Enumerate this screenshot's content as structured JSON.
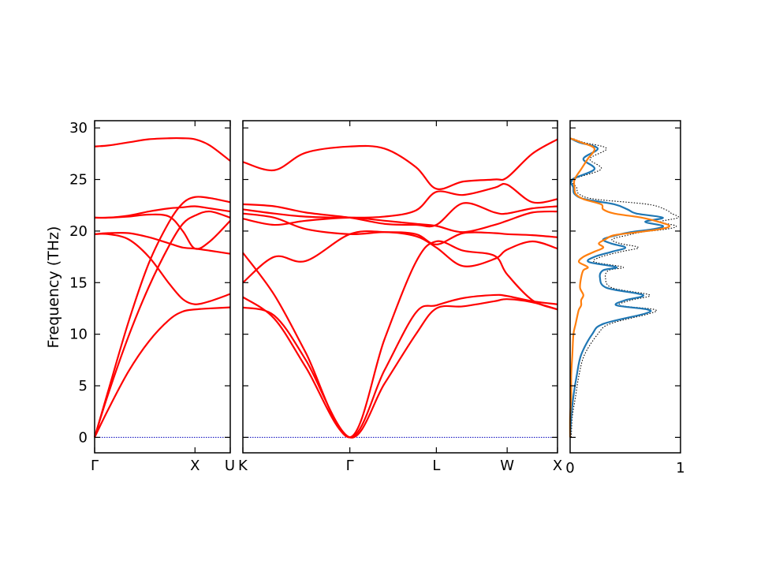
{
  "colors": {
    "band": "#ff0000",
    "zero_line": "#0000bb",
    "dos_total": "#000000",
    "dos_1": "#1f77b4",
    "dos_2": "#ff7f0e"
  },
  "chart_data": {
    "type": "line",
    "title": "",
    "ylabel": "Frequency (THz)",
    "ylim": [
      -1.5,
      30.7
    ],
    "yticks": [
      0,
      5,
      10,
      15,
      20,
      25,
      30
    ],
    "grid": false,
    "dos_xlim": [
      0,
      1
    ],
    "dos_xticks": [
      "0",
      "1"
    ],
    "segments": [
      {
        "xticks": [
          {
            "pos": 0,
            "label": "Γ"
          },
          {
            "pos": 0.74,
            "label": "X"
          },
          {
            "pos": 1,
            "label": "U"
          }
        ],
        "bands": [
          {
            "x": [
              0,
              0.1,
              0.25,
              0.4,
              0.55,
              0.65,
              0.74,
              0.85,
              1.0
            ],
            "y": [
              0,
              2.7,
              6.4,
              9.3,
              11.4,
              12.2,
              12.4,
              12.5,
              12.6
            ]
          },
          {
            "x": [
              0,
              0.1,
              0.25,
              0.4,
              0.55,
              0.65,
              0.74,
              0.85,
              1.0
            ],
            "y": [
              0,
              4.2,
              9.8,
              14.6,
              18.6,
              20.7,
              21.5,
              21.9,
              21.3
            ]
          },
          {
            "x": [
              0,
              0.1,
              0.25,
              0.4,
              0.55,
              0.65,
              0.74,
              0.85,
              1.0
            ],
            "y": [
              0,
              4.5,
              11.2,
              16.9,
              20.9,
              22.7,
              23.3,
              23.2,
              22.8
            ]
          },
          {
            "x": [
              0,
              0.1,
              0.25,
              0.4,
              0.55,
              0.65,
              0.74,
              0.85,
              1.0
            ],
            "y": [
              19.7,
              19.7,
              19.2,
              17.5,
              14.9,
              13.4,
              12.9,
              13.2,
              13.9
            ]
          },
          {
            "x": [
              0,
              0.1,
              0.25,
              0.4,
              0.55,
              0.65,
              0.74,
              0.85,
              1.0
            ],
            "y": [
              19.7,
              19.8,
              19.8,
              19.4,
              18.8,
              18.4,
              18.3,
              18.1,
              17.8
            ]
          },
          {
            "x": [
              0,
              0.1,
              0.25,
              0.4,
              0.55,
              0.65,
              0.74,
              0.85,
              1.0
            ],
            "y": [
              21.3,
              21.3,
              21.5,
              21.9,
              22.2,
              22.3,
              22.4,
              22.2,
              21.9
            ]
          },
          {
            "x": [
              0,
              0.1,
              0.25,
              0.4,
              0.55,
              0.65,
              0.74,
              0.85,
              1.0
            ],
            "y": [
              21.3,
              21.3,
              21.4,
              21.6,
              21.4,
              20.0,
              18.3,
              19.0,
              21.0
            ]
          },
          {
            "x": [
              0,
              0.1,
              0.25,
              0.4,
              0.55,
              0.65,
              0.74,
              0.85,
              1.0
            ],
            "y": [
              28.2,
              28.3,
              28.6,
              28.9,
              29.0,
              29.0,
              28.9,
              28.3,
              26.8
            ]
          }
        ]
      },
      {
        "xticks": [
          {
            "pos": 0,
            "label": "K"
          },
          {
            "pos": 0.34,
            "label": "Γ"
          },
          {
            "pos": 0.615,
            "label": "L"
          },
          {
            "pos": 0.84,
            "label": "W"
          },
          {
            "pos": 1,
            "label": "X"
          }
        ],
        "bands": [
          {
            "x": [
              0,
              0.1,
              0.2,
              0.34,
              0.45,
              0.55,
              0.615,
              0.7,
              0.8,
              0.84,
              0.92,
              1.0
            ],
            "y": [
              12.6,
              11.8,
              7.5,
              0,
              5.2,
              10.0,
              12.5,
              12.7,
              13.2,
              13.4,
              13.1,
              12.4
            ]
          },
          {
            "x": [
              0,
              0.1,
              0.2,
              0.34,
              0.45,
              0.55,
              0.615,
              0.7,
              0.8,
              0.84,
              0.92,
              1.0
            ],
            "y": [
              13.6,
              11.5,
              6.8,
              0,
              6.5,
              12.1,
              12.8,
              13.5,
              13.8,
              13.7,
              13.2,
              12.9
            ]
          },
          {
            "x": [
              0,
              0.1,
              0.2,
              0.34,
              0.45,
              0.55,
              0.615,
              0.7,
              0.8,
              0.84,
              0.92,
              1.0
            ],
            "y": [
              17.9,
              13.8,
              8.2,
              0,
              9.5,
              17.0,
              19.0,
              18.1,
              17.6,
              15.8,
              13.3,
              12.4
            ]
          },
          {
            "x": [
              0,
              0.1,
              0.2,
              0.34,
              0.45,
              0.55,
              0.615,
              0.7,
              0.8,
              0.84,
              0.92,
              1.0
            ],
            "y": [
              15.0,
              17.5,
              17.1,
              19.7,
              19.9,
              19.5,
              18.4,
              16.6,
              17.3,
              18.2,
              19.0,
              18.3
            ]
          },
          {
            "x": [
              0,
              0.1,
              0.2,
              0.34,
              0.45,
              0.55,
              0.615,
              0.7,
              0.8,
              0.84,
              0.92,
              1.0
            ],
            "y": [
              21.7,
              21.3,
              20.2,
              19.7,
              19.9,
              19.7,
              18.7,
              19.8,
              19.8,
              19.7,
              19.6,
              19.4
            ]
          },
          {
            "x": [
              0,
              0.1,
              0.2,
              0.34,
              0.45,
              0.55,
              0.615,
              0.7,
              0.8,
              0.84,
              0.92,
              1.0
            ],
            "y": [
              21.2,
              20.6,
              21.0,
              21.3,
              21.0,
              20.7,
              20.5,
              19.9,
              20.6,
              21.0,
              21.8,
              21.9
            ]
          },
          {
            "x": [
              0,
              0.1,
              0.2,
              0.34,
              0.45,
              0.55,
              0.615,
              0.7,
              0.8,
              0.84,
              0.92,
              1.0
            ],
            "y": [
              22.6,
              22.4,
              21.8,
              21.3,
              20.7,
              20.6,
              20.6,
              22.7,
              21.8,
              21.7,
              22.2,
              22.4
            ]
          },
          {
            "x": [
              0,
              0.1,
              0.2,
              0.34,
              0.45,
              0.55,
              0.615,
              0.7,
              0.8,
              0.84,
              0.92,
              1.0
            ],
            "y": [
              22.1,
              21.7,
              21.4,
              21.3,
              21.4,
              22.0,
              23.8,
              23.5,
              24.2,
              24.5,
              22.8,
              23.1
            ]
          },
          {
            "x": [
              0,
              0.1,
              0.2,
              0.34,
              0.45,
              0.55,
              0.615,
              0.7,
              0.8,
              0.84,
              0.92,
              1.0
            ],
            "y": [
              26.7,
              25.9,
              27.6,
              28.2,
              28.0,
              26.2,
              24.1,
              24.8,
              25.0,
              25.2,
              27.5,
              28.9
            ]
          }
        ]
      }
    ],
    "dos_series": [
      {
        "style": "dotted",
        "y": [
          0,
          2,
          4,
          6,
          8,
          10,
          11,
          12,
          12.4,
          12.8,
          13.3,
          13.8,
          14.5,
          15.5,
          16.2,
          16.5,
          17.0,
          17.5,
          18.0,
          18.4,
          18.8,
          19.2,
          19.6,
          19.9,
          20.2,
          20.5,
          20.9,
          21.3,
          21.7,
          22.1,
          22.6,
          23.1,
          23.6,
          24.2,
          25.0,
          26.0,
          27.0,
          28.0,
          28.6,
          29.0
        ],
        "v": [
          0.01,
          0.02,
          0.05,
          0.08,
          0.13,
          0.25,
          0.36,
          0.72,
          0.76,
          0.45,
          0.55,
          0.72,
          0.38,
          0.32,
          0.35,
          0.48,
          0.22,
          0.28,
          0.46,
          0.62,
          0.45,
          0.38,
          0.52,
          0.65,
          0.88,
          0.96,
          0.82,
          0.98,
          0.92,
          0.86,
          0.7,
          0.22,
          0.08,
          0.06,
          0.03,
          0.28,
          0.18,
          0.33,
          0.12,
          0.02
        ]
      },
      {
        "style": "solid",
        "color": "dos_1",
        "y": [
          0,
          2,
          4,
          6,
          8,
          10,
          11,
          12,
          12.4,
          12.8,
          13.3,
          13.8,
          14.5,
          15.5,
          16.2,
          16.5,
          17.0,
          17.5,
          18.0,
          18.4,
          18.8,
          19.2,
          19.6,
          19.9,
          20.2,
          20.5,
          20.9,
          21.3,
          21.7,
          22.1,
          22.6,
          23.1,
          23.6,
          24.2,
          25.0,
          26.0,
          27.0,
          28.0,
          28.6,
          29.0
        ],
        "v": [
          0.0,
          0.01,
          0.03,
          0.06,
          0.1,
          0.2,
          0.3,
          0.68,
          0.7,
          0.42,
          0.5,
          0.66,
          0.33,
          0.27,
          0.3,
          0.42,
          0.17,
          0.22,
          0.38,
          0.5,
          0.37,
          0.3,
          0.42,
          0.55,
          0.76,
          0.84,
          0.68,
          0.84,
          0.6,
          0.52,
          0.4,
          0.13,
          0.04,
          0.03,
          0.02,
          0.22,
          0.12,
          0.25,
          0.08,
          0.0
        ]
      },
      {
        "style": "solid",
        "color": "dos_2",
        "y": [
          0,
          2,
          4,
          6,
          8,
          10,
          11,
          12,
          12.4,
          12.8,
          13.3,
          13.8,
          14.5,
          15.5,
          16.2,
          16.5,
          17.0,
          17.5,
          18.0,
          18.4,
          18.8,
          19.2,
          19.6,
          19.9,
          20.2,
          20.5,
          20.9,
          21.3,
          21.7,
          22.1,
          22.6,
          23.1,
          23.6,
          24.2,
          25.0,
          26.0,
          27.0,
          28.0,
          28.6,
          29.0
        ],
        "v": [
          0.0,
          0.0,
          0.01,
          0.01,
          0.02,
          0.03,
          0.05,
          0.07,
          0.08,
          0.1,
          0.1,
          0.12,
          0.09,
          0.1,
          0.12,
          0.16,
          0.08,
          0.12,
          0.22,
          0.3,
          0.26,
          0.32,
          0.4,
          0.62,
          0.82,
          0.9,
          0.8,
          0.65,
          0.4,
          0.3,
          0.28,
          0.12,
          0.05,
          0.04,
          0.04,
          0.1,
          0.16,
          0.22,
          0.1,
          0.0
        ]
      }
    ]
  }
}
